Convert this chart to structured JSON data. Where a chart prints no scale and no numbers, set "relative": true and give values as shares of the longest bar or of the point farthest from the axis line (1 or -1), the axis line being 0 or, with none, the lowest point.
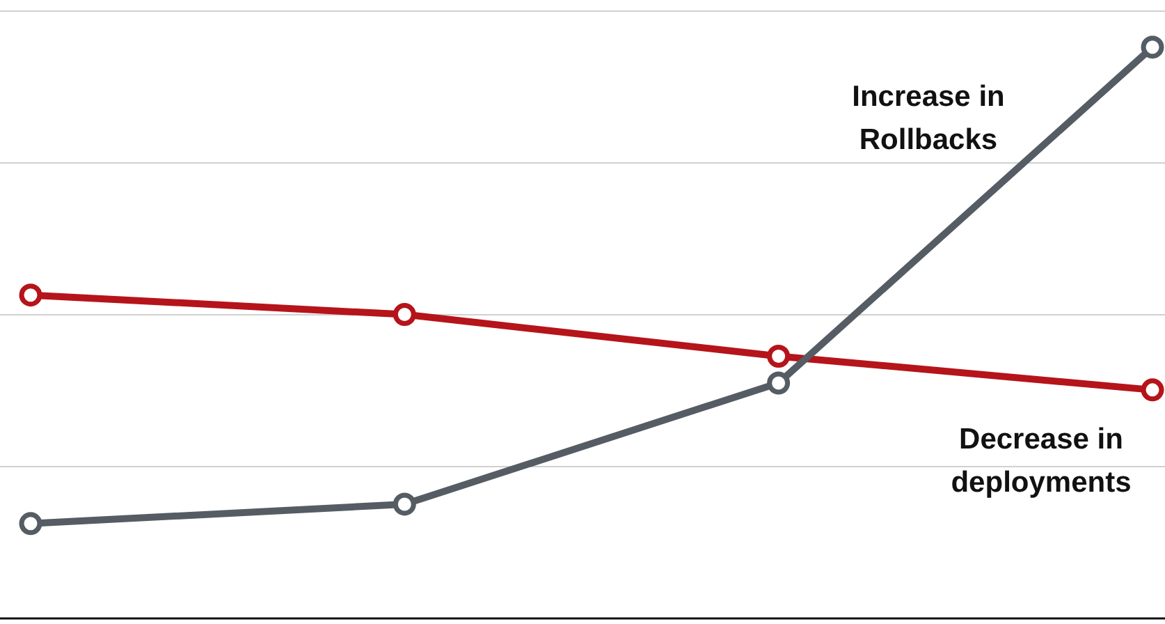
{
  "chart_data": {
    "type": "line",
    "relative": true,
    "categories": [
      null,
      null,
      null,
      null
    ],
    "series": [
      {
        "color": "#b5141a",
        "values": [
          0.566,
          0.532,
          0.459,
          0.4
        ]
      },
      {
        "color": "#555c64",
        "values": [
          0.166,
          0.2,
          0.412,
          1
        ]
      }
    ],
    "annotations": [
      "Decrease in deployments",
      "Increase in Rollbacks"
    ],
    "grid": true,
    "marker": "circle",
    "line_style": "solid"
  }
}
